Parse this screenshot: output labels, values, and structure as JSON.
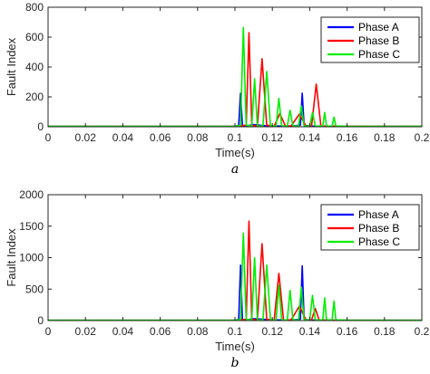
{
  "chart_data": [
    {
      "type": "line",
      "caption": "a",
      "xlabel": "Time(s)",
      "ylabel": "Fault Index",
      "xlim": [
        0,
        0.2
      ],
      "ylim": [
        0,
        800
      ],
      "xticks": [
        "0",
        "0.02",
        "0.04",
        "0.06",
        "0.08",
        "0.1",
        "0.12",
        "0.14",
        "0.16",
        "0.18",
        "0.2"
      ],
      "yticks": [
        "0",
        "200",
        "400",
        "600",
        "800"
      ],
      "legend_position": "top-right",
      "series": [
        {
          "name": "Phase A",
          "color": "#0000ff",
          "x": [
            0,
            0.1,
            0.102,
            0.103,
            0.104,
            0.106,
            0.11,
            0.115,
            0.12,
            0.13,
            0.135,
            0.136,
            0.137,
            0.14,
            0.15,
            0.2
          ],
          "y": [
            3,
            3,
            10,
            225,
            10,
            5,
            15,
            8,
            5,
            5,
            10,
            225,
            10,
            5,
            3,
            3
          ]
        },
        {
          "name": "Phase B",
          "color": "#ff0000",
          "x": [
            0,
            0.1,
            0.106,
            0.1075,
            0.109,
            0.112,
            0.1145,
            0.117,
            0.121,
            0.124,
            0.127,
            0.13,
            0.1345,
            0.138,
            0.141,
            0.1435,
            0.146,
            0.15,
            0.2
          ],
          "y": [
            3,
            3,
            10,
            630,
            10,
            5,
            455,
            10,
            5,
            88,
            5,
            5,
            85,
            5,
            5,
            285,
            5,
            4,
            3
          ]
        },
        {
          "name": "Phase C",
          "color": "#00ee00",
          "x": [
            0,
            0.1,
            0.103,
            0.1045,
            0.106,
            0.109,
            0.1105,
            0.112,
            0.115,
            0.117,
            0.119,
            0.122,
            0.1235,
            0.125,
            0.128,
            0.1295,
            0.131,
            0.134,
            0.1355,
            0.137,
            0.14,
            0.1415,
            0.143,
            0.147,
            0.148,
            0.149,
            0.152,
            0.153,
            0.154,
            0.158,
            0.16,
            0.2
          ],
          "y": [
            3,
            3,
            10,
            665,
            10,
            5,
            320,
            5,
            5,
            370,
            5,
            5,
            190,
            5,
            5,
            110,
            5,
            5,
            140,
            5,
            5,
            95,
            5,
            5,
            95,
            5,
            5,
            65,
            5,
            5,
            3,
            3
          ]
        }
      ]
    },
    {
      "type": "line",
      "caption": "b",
      "xlabel": "Time(s)",
      "ylabel": "Fault Index",
      "xlim": [
        0,
        0.2
      ],
      "ylim": [
        0,
        2000
      ],
      "xticks": [
        "0",
        "0.02",
        "0.04",
        "0.06",
        "0.08",
        "0.1",
        "0.12",
        "0.14",
        "0.16",
        "0.18",
        "0.2"
      ],
      "yticks": [
        "0",
        "500",
        "1000",
        "1500",
        "2000"
      ],
      "legend_position": "top-right",
      "series": [
        {
          "name": "Phase A",
          "color": "#0000ff",
          "x": [
            0,
            0.1,
            0.102,
            0.103,
            0.104,
            0.106,
            0.11,
            0.115,
            0.12,
            0.13,
            0.135,
            0.136,
            0.137,
            0.14,
            0.15,
            0.2
          ],
          "y": [
            5,
            5,
            20,
            880,
            20,
            10,
            30,
            20,
            10,
            10,
            20,
            870,
            20,
            10,
            5,
            5
          ]
        },
        {
          "name": "Phase B",
          "color": "#ff0000",
          "x": [
            0,
            0.1,
            0.106,
            0.1075,
            0.109,
            0.112,
            0.1145,
            0.117,
            0.121,
            0.1235,
            0.126,
            0.13,
            0.1345,
            0.138,
            0.141,
            0.143,
            0.145,
            0.15,
            0.2
          ],
          "y": [
            5,
            5,
            20,
            1580,
            20,
            10,
            1220,
            20,
            10,
            750,
            10,
            10,
            230,
            10,
            10,
            190,
            10,
            5,
            5
          ]
        },
        {
          "name": "Phase C",
          "color": "#00ee00",
          "x": [
            0,
            0.1,
            0.103,
            0.1045,
            0.106,
            0.109,
            0.1105,
            0.112,
            0.115,
            0.117,
            0.119,
            0.122,
            0.1235,
            0.125,
            0.128,
            0.1295,
            0.131,
            0.134,
            0.1355,
            0.137,
            0.14,
            0.1415,
            0.143,
            0.147,
            0.148,
            0.149,
            0.152,
            0.153,
            0.154,
            0.158,
            0.16,
            0.2
          ],
          "y": [
            5,
            5,
            20,
            1390,
            20,
            10,
            1000,
            10,
            10,
            880,
            10,
            10,
            560,
            10,
            10,
            480,
            10,
            10,
            530,
            10,
            10,
            400,
            10,
            10,
            360,
            10,
            10,
            310,
            10,
            10,
            5,
            5
          ]
        }
      ]
    }
  ]
}
